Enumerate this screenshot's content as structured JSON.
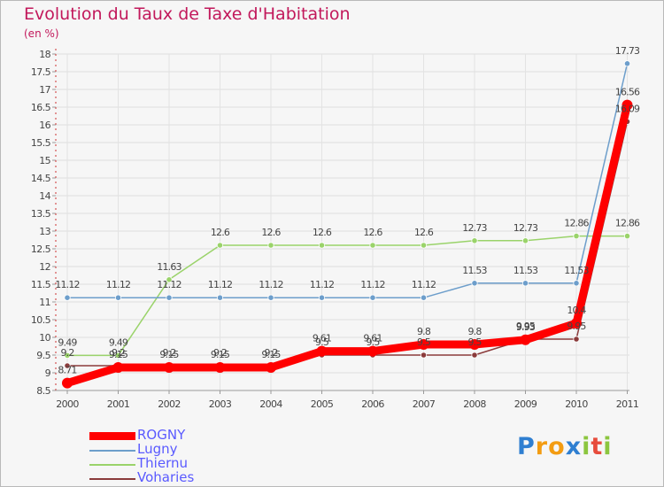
{
  "title": "Evolution du Taux de Taxe d'Habitation",
  "subtitle": "(en %)",
  "logo": {
    "letters": [
      "P",
      "r",
      "o",
      "x",
      "i",
      "t",
      "i"
    ],
    "colors": [
      "#2f7fd1",
      "#f39c12",
      "#f39c12",
      "#2f7fd1",
      "#8cc63f",
      "#e74c3c",
      "#8cc63f"
    ]
  },
  "chart_data": {
    "type": "line",
    "x": [
      "2000",
      "2001",
      "2002",
      "2003",
      "2004",
      "2005",
      "2006",
      "2007",
      "2008",
      "2009",
      "2010",
      "2011"
    ],
    "ylim": [
      8.5,
      18
    ],
    "yticks": [
      "8.5",
      "9",
      "9.5",
      "10",
      "10.5",
      "11",
      "11.5",
      "12",
      "12.5",
      "13",
      "13.5",
      "14",
      "14.5",
      "15",
      "15.5",
      "16",
      "16.5",
      "17",
      "17.5",
      "18"
    ],
    "grid": true,
    "legend_position": "bottom-left",
    "series": [
      {
        "name": "ROGNY",
        "color": "#ff0000",
        "width": 9,
        "radius": 6,
        "values": [
          8.71,
          9.15,
          9.15,
          9.15,
          9.15,
          9.61,
          9.61,
          9.8,
          9.8,
          9.93,
          10.4,
          16.56
        ],
        "labels": [
          "8.71",
          "9.15",
          "9.15",
          "9.15",
          "9.15",
          "9.61",
          "9.61",
          "9.8",
          "9.8",
          "9.93",
          "10.4",
          "16.56"
        ]
      },
      {
        "name": "Lugny",
        "color": "#6d9ecb",
        "width": 1.5,
        "radius": 3.2,
        "values": [
          11.12,
          11.12,
          11.12,
          11.12,
          11.12,
          11.12,
          11.12,
          11.12,
          11.53,
          11.53,
          11.53,
          17.73
        ],
        "labels": [
          "11.12",
          "11.12",
          "11.12",
          "11.12",
          "11.12",
          "11.12",
          "11.12",
          "11.12",
          "11.53",
          "11.53",
          "11.53",
          "17.73"
        ]
      },
      {
        "name": "Thiernu",
        "color": "#9ad36a",
        "width": 1.5,
        "radius": 3.2,
        "values": [
          9.49,
          9.49,
          11.63,
          12.6,
          12.6,
          12.6,
          12.6,
          12.6,
          12.73,
          12.73,
          12.86,
          12.86
        ],
        "labels": [
          "9.49",
          "9.49",
          "11.63",
          "12.6",
          "12.6",
          "12.6",
          "12.6",
          "12.6",
          "12.73",
          "12.73",
          "12.86",
          "12.86"
        ]
      },
      {
        "name": "Voharies",
        "color": "#8b3b3b",
        "width": 1.5,
        "radius": 3.2,
        "values": [
          9.2,
          9.2,
          9.2,
          9.2,
          9.2,
          9.5,
          9.5,
          9.5,
          9.5,
          9.95,
          9.95,
          16.09
        ],
        "labels": [
          "9.2",
          "9.2",
          "9.2",
          "9.2",
          "9.2",
          "9.5",
          "9.5",
          "9.5",
          "9.5",
          "9.95",
          "9.95",
          "16.09"
        ]
      }
    ]
  }
}
